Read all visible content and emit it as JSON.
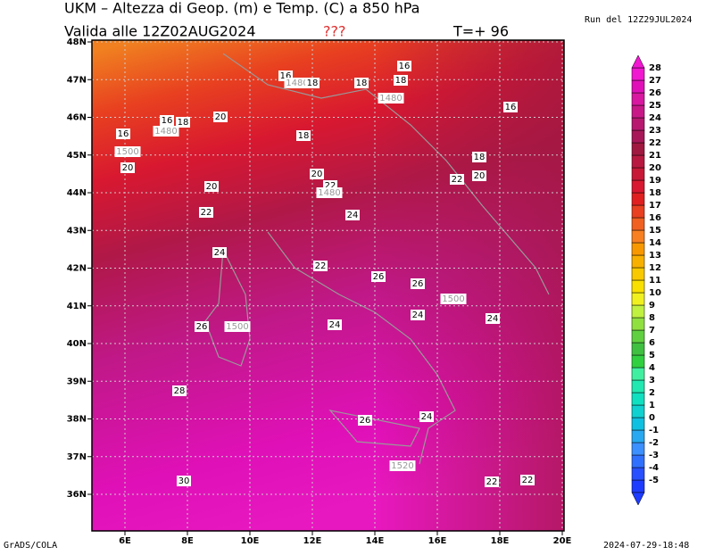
{
  "header": {
    "title": "UKM – Altezza di Geop. (m) e Temp. (C) a 850 hPa",
    "valid": "Valida alle 12Z02AUG2024",
    "flag": "???",
    "step": "T=+ 96",
    "run": "Run del 12Z29JUL2024"
  },
  "map": {
    "lat_labels": [
      "48N",
      "47N",
      "46N",
      "45N",
      "44N",
      "43N",
      "42N",
      "41N",
      "40N",
      "39N",
      "38N",
      "37N",
      "36N"
    ],
    "lon_labels": [
      "6E",
      "8E",
      "10E",
      "12E",
      "14E",
      "16E",
      "18E",
      "20E"
    ],
    "contour_labels": [
      16,
      1480,
      18,
      18,
      16,
      18,
      1480,
      16,
      16,
      18,
      1480,
      20,
      16,
      18,
      1500,
      20,
      18,
      20,
      22,
      1480,
      22,
      20,
      20,
      22,
      24,
      24,
      22,
      26,
      26,
      1500,
      24,
      24,
      26,
      1500,
      24,
      28,
      26,
      24,
      1520,
      22,
      22,
      30
    ]
  },
  "colorbar": {
    "levels": [
      -5,
      -4,
      -3,
      -2,
      -1,
      0,
      1,
      2,
      3,
      4,
      5,
      6,
      7,
      8,
      9,
      10,
      11,
      12,
      13,
      14,
      15,
      16,
      17,
      18,
      19,
      20,
      21,
      22,
      23,
      24,
      25,
      26,
      27,
      28
    ],
    "colors": [
      "#1e3cff",
      "#2850ff",
      "#3070ff",
      "#3c90ff",
      "#28a8f0",
      "#10c0e0",
      "#10d0d0",
      "#10e0c0",
      "#20e8b0",
      "#40f0a0",
      "#30d040",
      "#40c040",
      "#60d040",
      "#90e040",
      "#c0f040",
      "#f0f020",
      "#f8e000",
      "#f8c800",
      "#f8b000",
      "#f89800",
      "#f88020",
      "#f06020",
      "#e84020",
      "#e02020",
      "#d81830",
      "#c81838",
      "#b81840",
      "#a01840",
      "#a81858",
      "#b81870",
      "#c81888",
      "#d818a0",
      "#e010b8",
      "#f018d0"
    ]
  },
  "footer": {
    "left": "GrADS/COLA",
    "right": "2024-07-29-18:48"
  }
}
